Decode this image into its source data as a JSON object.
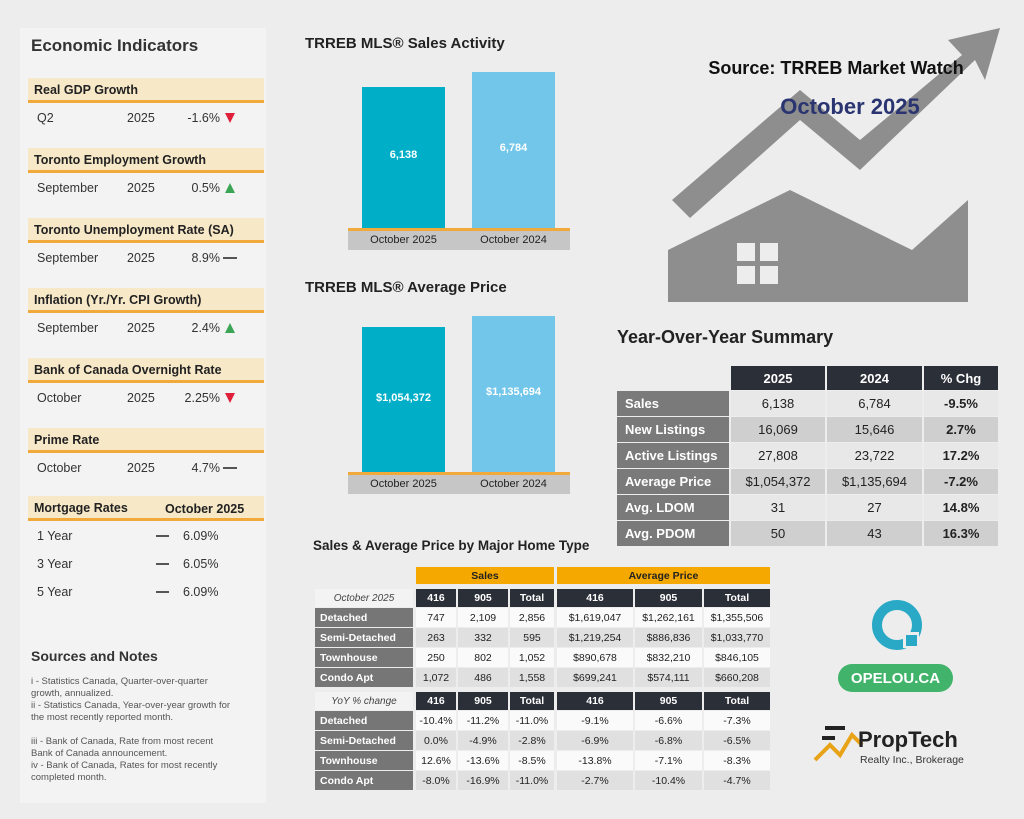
{
  "header": {
    "source": "Source: TRREB Market Watch",
    "period": "October 2025"
  },
  "economic_indicators": {
    "title": "Economic Indicators",
    "items": [
      {
        "name": "Real GDP Growth",
        "period": "Q2",
        "year": "2025",
        "value": "-1.6%",
        "trend": "down"
      },
      {
        "name": "Toronto Employment Growth",
        "period": "September",
        "year": "2025",
        "value": "0.5%",
        "trend": "up"
      },
      {
        "name": "Toronto Unemployment Rate (SA)",
        "period": "September",
        "year": "2025",
        "value": "8.9%",
        "trend": "flat"
      },
      {
        "name": "Inflation (Yr./Yr. CPI Growth)",
        "period": "September",
        "year": "2025",
        "value": "2.4%",
        "trend": "up"
      },
      {
        "name": "Bank of Canada Overnight Rate",
        "period": "October",
        "year": "2025",
        "value": "2.25%",
        "trend": "down"
      },
      {
        "name": "Prime Rate",
        "period": "October",
        "year": "2025",
        "value": "4.7%",
        "trend": "flat"
      }
    ]
  },
  "mortgage": {
    "title": "Mortgage Rates",
    "period": "October 2025",
    "rows": [
      {
        "term": "1 Year",
        "value": "6.09%"
      },
      {
        "term": "3 Year",
        "value": "6.05%"
      },
      {
        "term": "5 Year",
        "value": "6.09%"
      }
    ]
  },
  "sources": {
    "title": "Sources and Notes",
    "notes": [
      "i - Statistics Canada, Quarter-over-quarter growth, annualized.",
      "ii - Statistics Canada, Year-over-year growth for the most recently reported month.",
      "iii - Bank of Canada, Rate from most recent Bank of Canada announcement.",
      "iv - Bank of Canada, Rates for most recently completed month."
    ]
  },
  "chart_data": [
    {
      "type": "bar",
      "title": "TRREB MLS® Sales Activity",
      "categories": [
        "October 2025",
        "October 2024"
      ],
      "values": [
        6138,
        6784
      ],
      "value_labels": [
        "6,138",
        "6,784"
      ],
      "colors": [
        "#00aec7",
        "#72c6ea"
      ]
    },
    {
      "type": "bar",
      "title": "TRREB MLS® Average Price",
      "categories": [
        "October 2025",
        "October 2024"
      ],
      "values": [
        1054372,
        1135694
      ],
      "value_labels": [
        "$1,054,372",
        "$1,135,694"
      ],
      "colors": [
        "#00aec7",
        "#72c6ea"
      ]
    }
  ],
  "summary": {
    "title": "Year-Over-Year Summary",
    "columns": [
      "2025",
      "2024",
      "% Chg"
    ],
    "rows": [
      [
        "Sales",
        "6,138",
        "6,784",
        "-9.5%"
      ],
      [
        "New Listings",
        "16,069",
        "15,646",
        "2.7%"
      ],
      [
        "Active Listings",
        "27,808",
        "23,722",
        "17.2%"
      ],
      [
        "Average Price",
        "$1,054,372",
        "$1,135,694",
        "-7.2%"
      ],
      [
        "Avg. LDOM",
        "31",
        "27",
        "14.8%"
      ],
      [
        "Avg. PDOM",
        "50",
        "43",
        "16.3%"
      ]
    ]
  },
  "home_type": {
    "title": "Sales & Average Price by Major Home Type",
    "groups": [
      "Sales",
      "Average Price"
    ],
    "sections": [
      {
        "label": "October 2025",
        "columns": [
          "416",
          "905",
          "Total",
          "416",
          "905",
          "Total"
        ],
        "rows": [
          [
            "Detached",
            "747",
            "2,109",
            "2,856",
            "$1,619,047",
            "$1,262,161",
            "$1,355,506"
          ],
          [
            "Semi-Detached",
            "263",
            "332",
            "595",
            "$1,219,254",
            "$886,836",
            "$1,033,770"
          ],
          [
            "Townhouse",
            "250",
            "802",
            "1,052",
            "$890,678",
            "$832,210",
            "$846,105"
          ],
          [
            "Condo Apt",
            "1,072",
            "486",
            "1,558",
            "$699,241",
            "$574,111",
            "$660,208"
          ]
        ]
      },
      {
        "label": "YoY % change",
        "columns": [
          "416",
          "905",
          "Total",
          "416",
          "905",
          "Total"
        ],
        "rows": [
          [
            "Detached",
            "-10.4%",
            "-11.2%",
            "-11.0%",
            "-9.1%",
            "-6.6%",
            "-7.3%"
          ],
          [
            "Semi-Detached",
            "0.0%",
            "-4.9%",
            "-2.8%",
            "-6.9%",
            "-6.8%",
            "-6.5%"
          ],
          [
            "Townhouse",
            "12.6%",
            "-13.6%",
            "-8.5%",
            "-13.8%",
            "-7.1%",
            "-8.3%"
          ],
          [
            "Condo Apt",
            "-8.0%",
            "-16.9%",
            "-11.0%",
            "-2.7%",
            "-10.4%",
            "-4.7%"
          ]
        ]
      }
    ]
  },
  "logos": {
    "opelou": "OPELOU.CA",
    "proptech": "PropTech",
    "proptech_sub": "Realty Inc., Brokerage"
  }
}
